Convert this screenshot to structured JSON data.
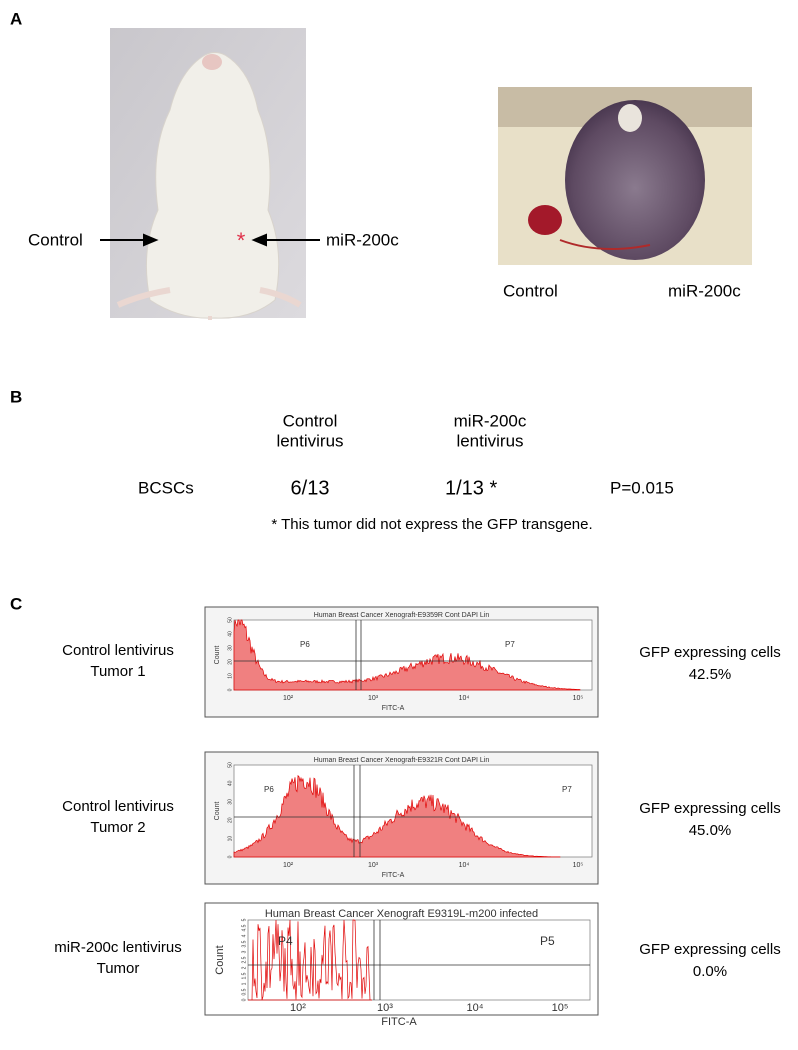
{
  "panel_a": {
    "label": "A",
    "left_photo": {
      "left_label": "Control",
      "marker": "*",
      "right_label": "miR-200c"
    },
    "right_photo": {
      "captions": [
        "Control",
        "miR-200c"
      ]
    }
  },
  "panel_b": {
    "label": "B",
    "columns": [
      [
        "Control",
        "lentivirus"
      ],
      [
        "miR-200c",
        "lentivirus"
      ]
    ],
    "row": {
      "name": "BCSCs",
      "cells": [
        "6/13",
        "1/13 *"
      ],
      "p_value": "P=0.015"
    },
    "footnote": "* This tumor did not express the GFP transgene."
  },
  "panel_c": {
    "label": "C",
    "plots": [
      {
        "sample": [
          "Control lentivirus",
          "Tumor 1"
        ],
        "title": "Human Breast Cancer Xenograft-E9359R Cont DAPI Lin",
        "gates": [
          "P6",
          "P7"
        ],
        "x_axis": "FITC-A",
        "y_axis": "Count",
        "xticks": [
          "10²",
          "10³",
          "10⁴",
          "10⁵"
        ],
        "yticks": [
          "0",
          "10",
          "20",
          "30",
          "40",
          "50"
        ],
        "result": [
          "GFP expressing cells",
          "42.5%"
        ]
      },
      {
        "sample": [
          "Control lentivirus",
          "Tumor 2"
        ],
        "title": "Human Breast Cancer Xenograft-E9321R Cont DAPI Lin",
        "gates": [
          "P6",
          "P7"
        ],
        "x_axis": "FITC-A",
        "y_axis": "Count",
        "xticks": [
          "10²",
          "10³",
          "10⁴",
          "10⁵"
        ],
        "yticks": [
          "0",
          "10",
          "20",
          "30",
          "40",
          "50"
        ],
        "result": [
          "GFP expressing cells",
          "45.0%"
        ]
      },
      {
        "sample": [
          "miR-200c lentivirus",
          "Tumor"
        ],
        "title": "Human Breast Cancer Xenograft E9319L-m200 infected",
        "gates": [
          "P4",
          "P5"
        ],
        "x_axis": "FITC-A",
        "y_axis": "Count",
        "xticks": [
          "10²",
          "10³",
          "10⁴",
          "10⁵"
        ],
        "yticks": [
          "0",
          "0.5",
          "1",
          "1.5",
          "2",
          "2.5",
          "3",
          "3.5",
          "4",
          "4.5",
          "5"
        ],
        "result": [
          "GFP expressing cells",
          "0.0%"
        ]
      }
    ]
  }
}
